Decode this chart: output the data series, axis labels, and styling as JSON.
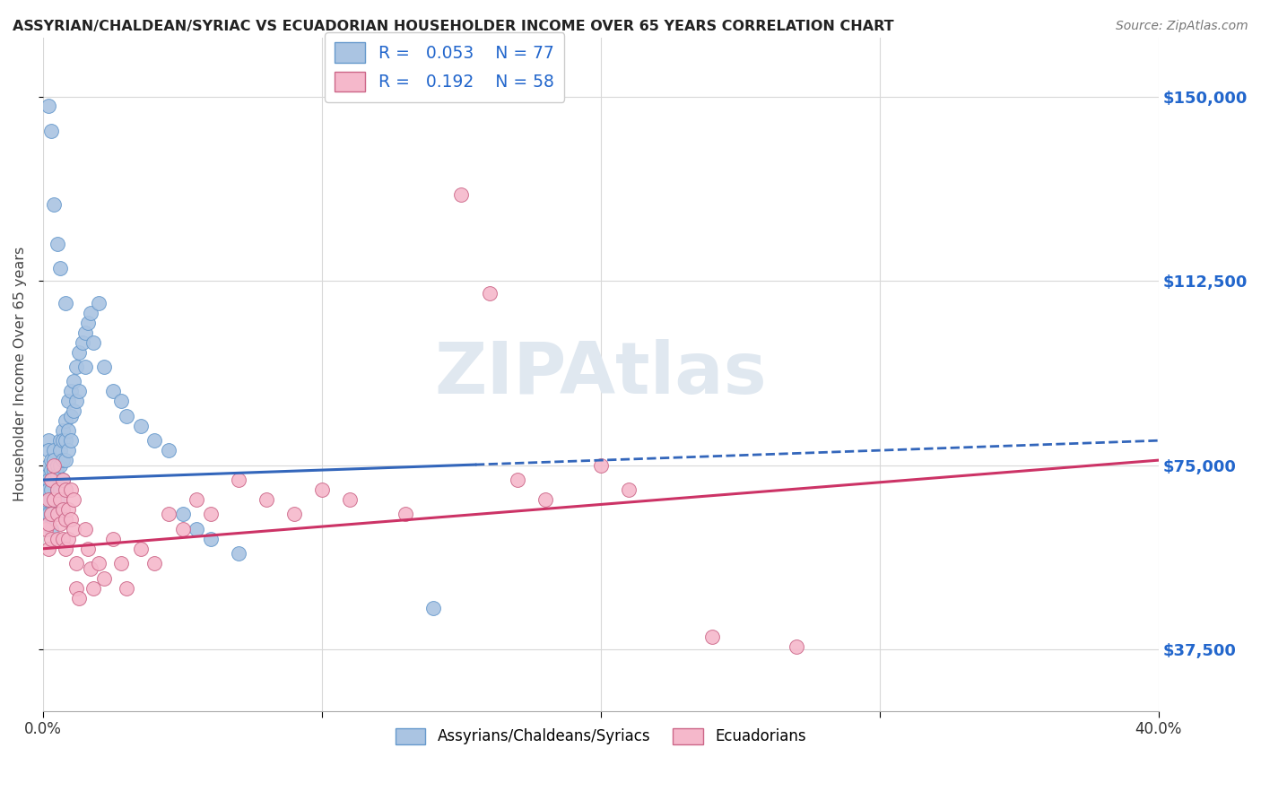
{
  "title": "ASSYRIAN/CHALDEAN/SYRIAC VS ECUADORIAN HOUSEHOLDER INCOME OVER 65 YEARS CORRELATION CHART",
  "source": "Source: ZipAtlas.com",
  "ylabel": "Householder Income Over 65 years",
  "xlim": [
    0.0,
    0.4
  ],
  "ylim": [
    25000,
    162000
  ],
  "yticks": [
    37500,
    75000,
    112500,
    150000
  ],
  "ytick_labels": [
    "$37,500",
    "$75,000",
    "$112,500",
    "$150,000"
  ],
  "xticks": [
    0.0,
    0.1,
    0.2,
    0.3,
    0.4
  ],
  "xtick_labels": [
    "0.0%",
    "",
    "",
    "",
    "40.0%"
  ],
  "grid_color": "#d8d8d8",
  "background_color": "#ffffff",
  "watermark": "ZIPAtlas",
  "watermark_color": "#e0e8f0",
  "assyrian": {
    "R": 0.053,
    "N": 77,
    "color": "#aac4e2",
    "edge_color": "#6699cc",
    "line_color": "#3366bb",
    "line_style": "--",
    "label": "Assyrians/Chaldeans/Syriacs",
    "scatter_x": [
      0.001,
      0.001,
      0.001,
      0.001,
      0.002,
      0.002,
      0.002,
      0.002,
      0.002,
      0.002,
      0.003,
      0.003,
      0.003,
      0.003,
      0.003,
      0.003,
      0.003,
      0.004,
      0.004,
      0.004,
      0.004,
      0.004,
      0.005,
      0.005,
      0.005,
      0.005,
      0.005,
      0.006,
      0.006,
      0.006,
      0.006,
      0.006,
      0.007,
      0.007,
      0.007,
      0.007,
      0.008,
      0.008,
      0.008,
      0.008,
      0.009,
      0.009,
      0.009,
      0.01,
      0.01,
      0.01,
      0.011,
      0.011,
      0.012,
      0.012,
      0.013,
      0.013,
      0.014,
      0.015,
      0.015,
      0.016,
      0.017,
      0.018,
      0.02,
      0.022,
      0.025,
      0.028,
      0.03,
      0.035,
      0.04,
      0.045,
      0.05,
      0.055,
      0.06,
      0.07,
      0.002,
      0.003,
      0.004,
      0.005,
      0.006,
      0.008,
      0.14
    ],
    "scatter_y": [
      73000,
      70000,
      68000,
      65000,
      80000,
      78000,
      75000,
      72000,
      70000,
      65000,
      76000,
      74000,
      72000,
      70000,
      68000,
      65000,
      62000,
      78000,
      76000,
      74000,
      72000,
      68000,
      75000,
      73000,
      70000,
      68000,
      65000,
      80000,
      78000,
      75000,
      70000,
      65000,
      82000,
      80000,
      76000,
      72000,
      84000,
      80000,
      76000,
      70000,
      88000,
      82000,
      78000,
      90000,
      85000,
      80000,
      92000,
      86000,
      95000,
      88000,
      98000,
      90000,
      100000,
      102000,
      95000,
      104000,
      106000,
      100000,
      108000,
      95000,
      90000,
      88000,
      85000,
      83000,
      80000,
      78000,
      65000,
      62000,
      60000,
      57000,
      148000,
      143000,
      128000,
      120000,
      115000,
      108000,
      46000
    ]
  },
  "ecuadorian": {
    "R": 0.192,
    "N": 58,
    "color": "#f5b8cb",
    "edge_color": "#cc6688",
    "line_color": "#cc3366",
    "line_style": "-",
    "label": "Ecuadorians",
    "scatter_x": [
      0.001,
      0.002,
      0.002,
      0.002,
      0.003,
      0.003,
      0.003,
      0.004,
      0.004,
      0.005,
      0.005,
      0.005,
      0.006,
      0.006,
      0.007,
      0.007,
      0.007,
      0.008,
      0.008,
      0.008,
      0.009,
      0.009,
      0.01,
      0.01,
      0.011,
      0.011,
      0.012,
      0.012,
      0.013,
      0.015,
      0.016,
      0.017,
      0.018,
      0.02,
      0.022,
      0.025,
      0.028,
      0.03,
      0.035,
      0.04,
      0.045,
      0.05,
      0.055,
      0.06,
      0.07,
      0.08,
      0.09,
      0.1,
      0.11,
      0.13,
      0.15,
      0.16,
      0.17,
      0.18,
      0.2,
      0.21,
      0.24,
      0.27
    ],
    "scatter_y": [
      62000,
      68000,
      63000,
      58000,
      72000,
      65000,
      60000,
      75000,
      68000,
      70000,
      65000,
      60000,
      68000,
      63000,
      72000,
      66000,
      60000,
      70000,
      64000,
      58000,
      66000,
      60000,
      70000,
      64000,
      68000,
      62000,
      55000,
      50000,
      48000,
      62000,
      58000,
      54000,
      50000,
      55000,
      52000,
      60000,
      55000,
      50000,
      58000,
      55000,
      65000,
      62000,
      68000,
      65000,
      72000,
      68000,
      65000,
      70000,
      68000,
      65000,
      130000,
      110000,
      72000,
      68000,
      75000,
      70000,
      40000,
      38000
    ]
  }
}
